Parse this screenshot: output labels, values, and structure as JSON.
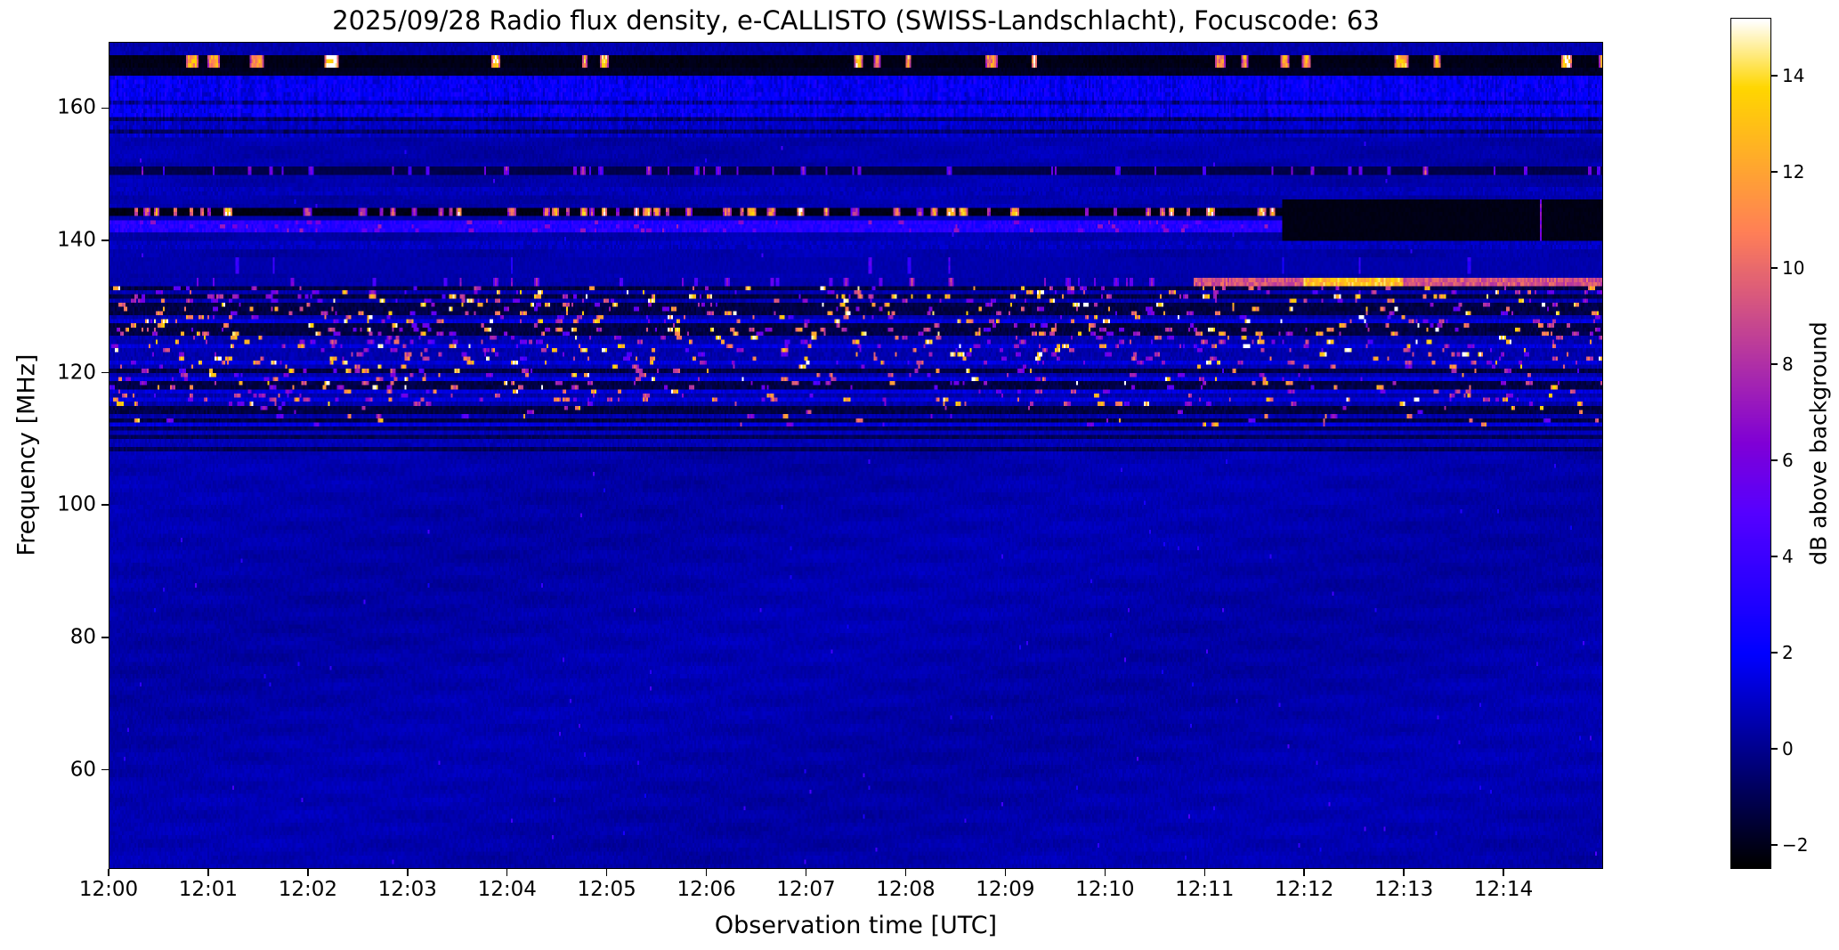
{
  "chart_data": {
    "type": "heatmap",
    "subtype": "radio-spectrogram",
    "title": "2025/09/28  Radio flux density, e-CALLISTO (SWISS-Landschlacht), Focuscode: 63",
    "xlabel": "Observation time [UTC]",
    "ylabel": "Frequency [MHz]",
    "x_range_utc": [
      "12:00:00",
      "12:15:00"
    ],
    "x_tick_labels": [
      "12:00",
      "12:01",
      "12:02",
      "12:03",
      "12:04",
      "12:05",
      "12:06",
      "12:07",
      "12:08",
      "12:09",
      "12:10",
      "12:11",
      "12:12",
      "12:13",
      "12:14"
    ],
    "x_tick_minutes": [
      0,
      1,
      2,
      3,
      4,
      5,
      6,
      7,
      8,
      9,
      10,
      11,
      12,
      13,
      14
    ],
    "y_range_mhz": [
      45,
      170
    ],
    "y_tick_values": [
      60,
      80,
      100,
      120,
      140,
      160
    ],
    "value_range_db": [
      -2.5,
      15.2
    ],
    "colormap": "gnuplot2 (black - blue - violet - magenta - orange - yellow - white)",
    "grid": false,
    "legend": "none",
    "colorbar": {
      "label": "dB above background",
      "position": "right",
      "tick_values": [
        -2,
        0,
        2,
        4,
        6,
        8,
        10,
        12,
        14
      ],
      "tick_labels": [
        "−2",
        "0",
        "2",
        "4",
        "6",
        "8",
        "10",
        "12",
        "14"
      ]
    },
    "background_level_db": 0.4,
    "seed": 20250928,
    "features": [
      {
        "kind": "flat",
        "f": [
          168.3,
          170.0
        ],
        "base": 0.5,
        "noise": 0.7,
        "note": "thin blue strip at top edge"
      },
      {
        "kind": "flat",
        "f": [
          167.9,
          168.3
        ],
        "base": -1.9,
        "noise": 0.3,
        "note": "black guard band"
      },
      {
        "kind": "bursts",
        "f": [
          166.3,
          167.9
        ],
        "bg": -2.3,
        "prob": 0.03,
        "len": [
          3,
          8
        ],
        "val": [
          11,
          15.5
        ],
        "note": "intermittent bright white RFI bursts ~167 MHz"
      },
      {
        "kind": "flat",
        "f": [
          165.1,
          166.3
        ],
        "base": -1.9,
        "noise": 0.4,
        "note": "black guard band"
      },
      {
        "kind": "noise",
        "f": [
          158.8,
          165.1
        ],
        "base": 1.0,
        "noise": 1.7,
        "darkRowProb": 0.22,
        "vstreak": 1.0,
        "note": "speckled blue band 159-165 MHz"
      },
      {
        "kind": "noise",
        "f": [
          155.5,
          158.8
        ],
        "base": 0.4,
        "noise": 1.1,
        "darkRowProb": 0.35,
        "vstreak": 0.6
      },
      {
        "kind": "dashes",
        "f": [
          149.8,
          151.1
        ],
        "bg": -1.4,
        "prob": 0.05,
        "len": [
          1,
          3
        ],
        "val": [
          5.5,
          9.5
        ],
        "note": "magenta dotted carrier ~150.5 MHz"
      },
      {
        "kind": "noise",
        "f": [
          146.6,
          148.2
        ],
        "base": 0.3,
        "noise": 0.8,
        "darkRowProb": 0.5
      },
      {
        "kind": "bursts",
        "f": [
          143.8,
          145.3
        ],
        "bg": -2.3,
        "prob": 0.095,
        "len": [
          2,
          5
        ],
        "val": [
          8,
          15.5
        ],
        "note": "strong white/yellow dotted carrier ~144.5 MHz"
      },
      {
        "kind": "noise",
        "f": [
          141.2,
          143.0
        ],
        "base": 2.4,
        "noise": 1.5,
        "dashProb": 0.03,
        "dashVal": [
          5,
          7.5
        ],
        "note": "bright blue band ~142 MHz with magenta flecks"
      },
      {
        "kind": "noise",
        "f": [
          138.5,
          140.2
        ],
        "base": 0.4,
        "noise": 0.9,
        "darkRowProb": 0.45
      },
      {
        "kind": "blackout",
        "f": [
          140.3,
          146.3
        ],
        "c": [
          660,
          840
        ],
        "bg": -2.25,
        "prob": 0.016,
        "len": [
          1,
          3
        ],
        "val": [
          6,
          11
        ],
        "note": "black dropout block on right side after ~12:11.8"
      },
      {
        "kind": "dashes",
        "f": [
          135.2,
          137.8
        ],
        "bg": 0.3,
        "prob": 0.007,
        "len": [
          1,
          2
        ],
        "val": [
          4,
          7.5
        ]
      },
      {
        "kind": "line",
        "f": [
          133.4,
          134.6
        ],
        "bg": 0.2,
        "dashProb": 0.045,
        "dashVal": [
          6.5,
          9.5
        ],
        "solidFrom": 610,
        "solidVal": [
          8,
          10.5
        ],
        "brightC": [
          672,
          728
        ],
        "brightVal": [
          11.5,
          14.5
        ],
        "note": "pink carrier ~134 MHz, continuous bright line after ~12:11"
      },
      {
        "kind": "busy",
        "f": [
          121.0,
          133.0
        ],
        "p": 0.05,
        "val": [
          5,
          15.5
        ],
        "darkRowProb": 0.5,
        "note": "dense RFI speckle 121-133 MHz"
      },
      {
        "kind": "busy",
        "f": [
          115.0,
          121.0
        ],
        "p": 0.033,
        "val": [
          5,
          15.0
        ],
        "darkRowProb": 0.5
      },
      {
        "kind": "busy",
        "f": [
          112.0,
          115.0
        ],
        "p": 0.012,
        "val": [
          5,
          13.0
        ],
        "darkRowProb": 0.6
      },
      {
        "kind": "noise",
        "f": [
          108.0,
          112.0
        ],
        "base": 0.3,
        "noise": 0.7,
        "darkRowProb": 0.4
      }
    ]
  }
}
